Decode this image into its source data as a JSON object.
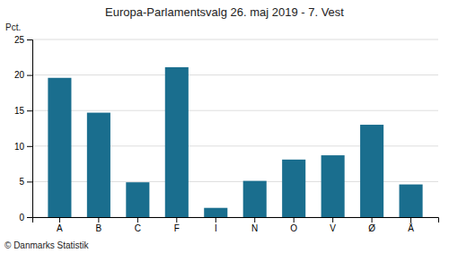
{
  "chart_data": {
    "type": "bar",
    "title": "Europa-Parlamentsvalg 26. maj 2019 - 7. Vest",
    "categories": [
      "A",
      "B",
      "C",
      "F",
      "I",
      "N",
      "O",
      "V",
      "Ø",
      "Å"
    ],
    "values": [
      19.6,
      14.7,
      4.9,
      21.1,
      1.3,
      5.1,
      8.1,
      8.7,
      13.0,
      4.6
    ],
    "color": "#1a6e8e",
    "ylabel": "Pct.",
    "annotations": [
      "© Danmarks Statistik"
    ],
    "ylim": [
      0,
      25
    ],
    "yticks": [
      0,
      5,
      10,
      15,
      20,
      25
    ],
    "grid": true
  }
}
